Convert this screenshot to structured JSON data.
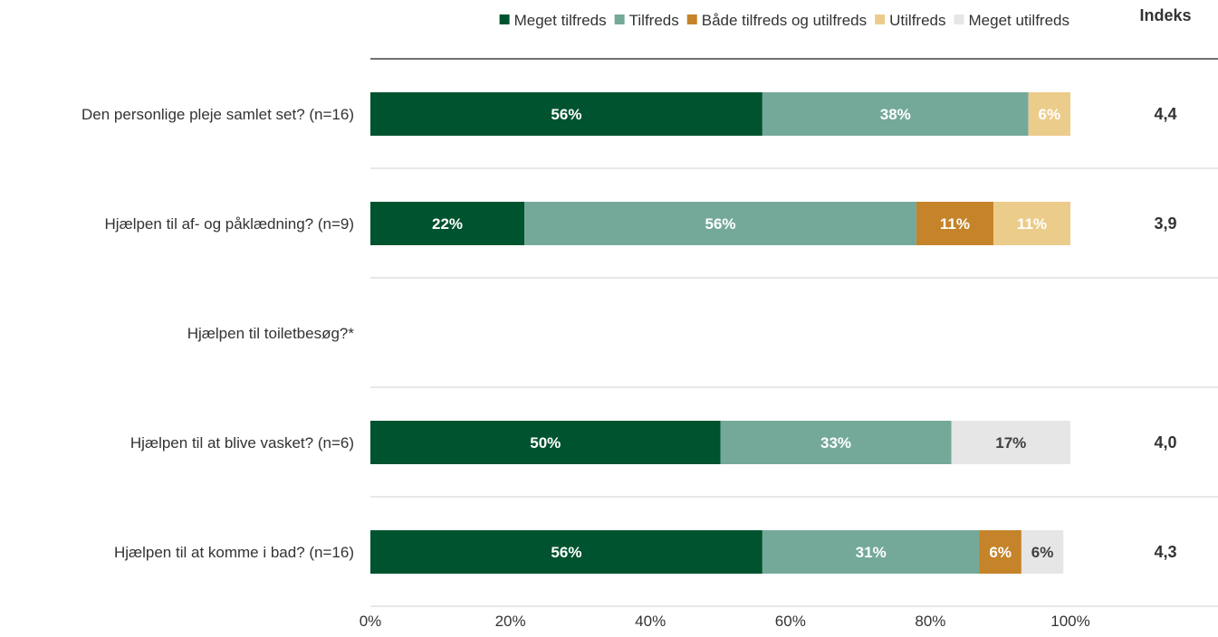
{
  "chart_data": {
    "type": "bar",
    "orientation": "horizontal",
    "stacked": true,
    "legend_position": "top",
    "categories": [
      "Den personlige pleje samlet set? (n=16)",
      "Hjælpen til af- og påklædning? (n=9)",
      "Hjælpen til toiletbesøg?*",
      "Hjælpen til at blive vasket? (n=6)",
      "Hjælpen til at komme i bad? (n=16)"
    ],
    "series": [
      {
        "name": "Meget tilfreds",
        "color": "#00532f",
        "label_color": "#ffffff",
        "values": [
          56,
          22,
          null,
          50,
          56
        ],
        "labels": [
          "56%",
          "22%",
          "",
          "50%",
          "56%"
        ]
      },
      {
        "name": "Tilfreds",
        "color": "#74a99a",
        "label_color": "#ffffff",
        "values": [
          38,
          56,
          null,
          33,
          31
        ],
        "labels": [
          "38%",
          "56%",
          "",
          "33%",
          "31%"
        ]
      },
      {
        "name": "Både tilfreds og utilfreds",
        "color": "#c5832a",
        "label_color": "#ffffff",
        "values": [
          0,
          11,
          null,
          0,
          6
        ],
        "labels": [
          "",
          "11%",
          "",
          "",
          "6%"
        ]
      },
      {
        "name": "Utilfreds",
        "color": "#eccc8a",
        "label_color": "#ffffff",
        "values": [
          6,
          11,
          null,
          0,
          0
        ],
        "labels": [
          "6%",
          "11%",
          "",
          "",
          ""
        ]
      },
      {
        "name": "Meget utilfreds",
        "color": "#e6e6e6",
        "label_color": "#404040",
        "values": [
          0,
          0,
          null,
          17,
          6
        ],
        "labels": [
          "",
          "",
          "",
          "17%",
          "6%"
        ]
      }
    ],
    "index_header": "Indeks",
    "index_values": [
      "4,4",
      "3,9",
      "",
      "4,0",
      "4,3"
    ],
    "x_ticks": [
      "0%",
      "20%",
      "40%",
      "60%",
      "80%",
      "100%"
    ],
    "xlim": [
      0,
      100
    ],
    "grid": false
  }
}
